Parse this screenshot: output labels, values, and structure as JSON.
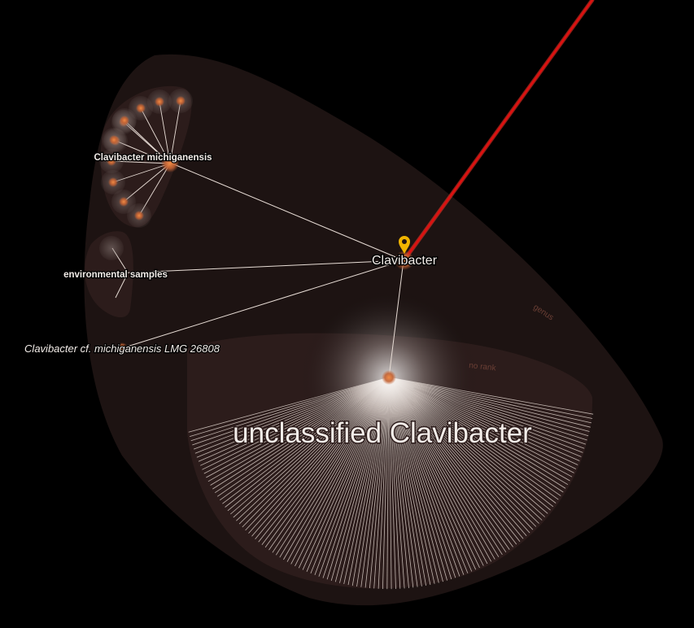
{
  "labels": {
    "root": "Clavibacter",
    "species": "Clavibacter michiganensis",
    "env": "environmental samples",
    "strain": "Clavibacter cf. michiganensis LMG 26808",
    "unclassified": "unclassified Clavibacter"
  },
  "rank_labels": {
    "genus": "genus",
    "no_rank": "no rank"
  },
  "icons": {
    "marker": "location-pin-icon"
  },
  "colors": {
    "background": "#000000",
    "genus_region": "#1d1312",
    "region": "#2c1c1b",
    "node": "#e0763a",
    "link": "#e8ddd6",
    "beam": "#e01010",
    "pin": "#f0b400",
    "text": "#f2ece8",
    "rank_text": "#6b3f35"
  },
  "counts": {
    "michiganensis_children": 11,
    "environmental_children": 2,
    "unclassified_children": 130
  }
}
